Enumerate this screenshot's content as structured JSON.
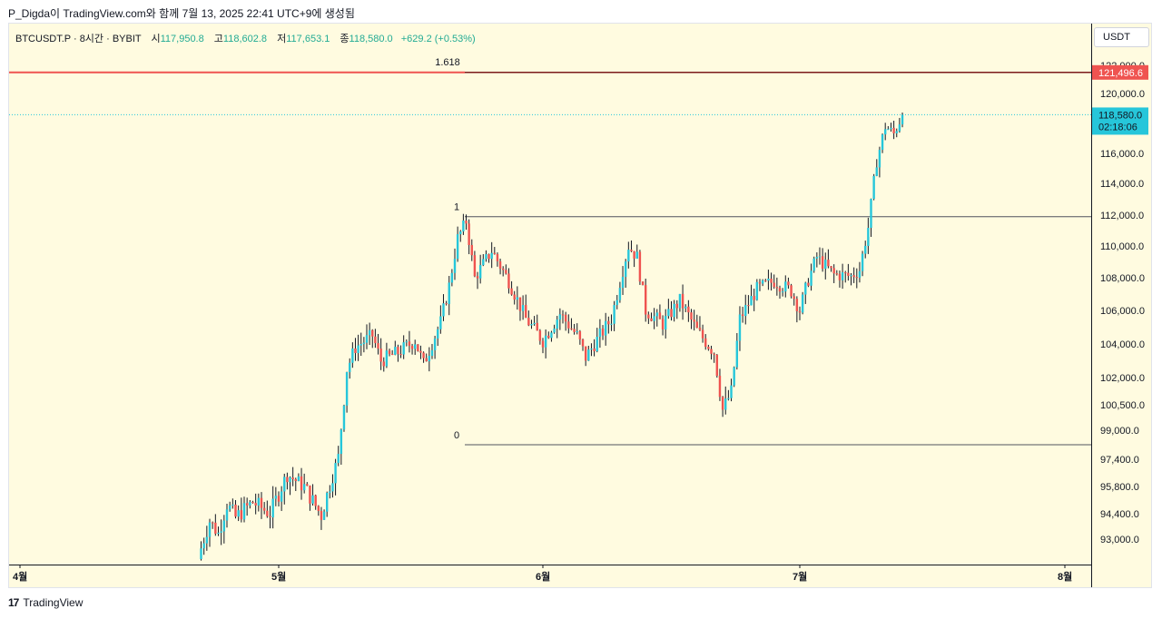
{
  "header": {
    "text": "P_Digda이 TradingView.com와 함께 7월 13, 2025 22:41 UTC+9에 생성됨"
  },
  "symbol": {
    "title": "BTCUSDT.P · 8시간 · BYBIT",
    "open_label": "시",
    "open": "117,950.8",
    "high_label": "고",
    "high": "118,602.8",
    "low_label": "저",
    "low": "117,653.1",
    "close_label": "종",
    "close": "118,580.0",
    "change": "+629.2 (+0.53%)"
  },
  "currency": "USDT",
  "footer": {
    "logo": "17",
    "brand": "TradingView"
  },
  "colors": {
    "up": "#26c6da",
    "down": "#ef5350",
    "background": "#fffbe0",
    "fib_line": "#7b1b1b",
    "last_price_tag": "#26c6da",
    "fib_tag": "#ef5350"
  },
  "chart_data": {
    "type": "candlestick",
    "timeframe": "8h",
    "y_axis_labels": [
      "122,000.0",
      "120,000.0",
      "116,000.0",
      "114,000.0",
      "112,000.0",
      "110,000.0",
      "108,000.0",
      "106,000.0",
      "104,000.0",
      "102,000.0",
      "100,500.0",
      "99,000.0",
      "97,400.0",
      "95,800.0",
      "94,400.0",
      "93,000.0"
    ],
    "x_axis_labels": [
      "4월",
      "5월",
      "6월",
      "7월",
      "8월"
    ],
    "fib_levels": [
      {
        "label": "1.618",
        "value": 121496.6,
        "tag": "121,496.6"
      },
      {
        "label": "1",
        "value": 111900
      },
      {
        "label": "0",
        "value": 98200
      }
    ],
    "last_price": {
      "value": 118580.0,
      "label": "118,580.0",
      "countdown": "02:18:06"
    },
    "path": [
      [
        "2025-04-22",
        92500
      ],
      [
        "2025-04-23",
        94000
      ],
      [
        "2025-04-24",
        93300
      ],
      [
        "2025-04-25",
        94900
      ],
      [
        "2025-04-26",
        94200
      ],
      [
        "2025-04-28",
        95000
      ],
      [
        "2025-04-30",
        94400
      ],
      [
        "2025-05-02",
        96500
      ],
      [
        "2025-05-04",
        95800
      ],
      [
        "2025-05-06",
        94300
      ],
      [
        "2025-05-08",
        97500
      ],
      [
        "2025-05-09",
        102500
      ],
      [
        "2025-05-10",
        103800
      ],
      [
        "2025-05-12",
        104500
      ],
      [
        "2025-05-13",
        103000
      ],
      [
        "2025-05-15",
        103500
      ],
      [
        "2025-05-17",
        104200
      ],
      [
        "2025-05-18",
        102800
      ],
      [
        "2025-05-20",
        105300
      ],
      [
        "2025-05-21",
        107500
      ],
      [
        "2025-05-22",
        110500
      ],
      [
        "2025-05-23",
        111600
      ],
      [
        "2025-05-24",
        108000
      ],
      [
        "2025-05-26",
        109700
      ],
      [
        "2025-05-28",
        107800
      ],
      [
        "2025-05-30",
        105500
      ],
      [
        "2025-06-01",
        104200
      ],
      [
        "2025-06-03",
        105800
      ],
      [
        "2025-06-05",
        104500
      ],
      [
        "2025-06-06",
        103200
      ],
      [
        "2025-06-07",
        104000
      ],
      [
        "2025-06-09",
        105500
      ],
      [
        "2025-06-11",
        110000
      ],
      [
        "2025-06-12",
        109300
      ],
      [
        "2025-06-13",
        106000
      ],
      [
        "2025-06-15",
        105200
      ],
      [
        "2025-06-17",
        106600
      ],
      [
        "2025-06-19",
        104800
      ],
      [
        "2025-06-21",
        103500
      ],
      [
        "2025-06-22",
        100200
      ],
      [
        "2025-06-23",
        101200
      ],
      [
        "2025-06-24",
        105500
      ],
      [
        "2025-06-26",
        107300
      ],
      [
        "2025-06-28",
        107800
      ],
      [
        "2025-06-30",
        107200
      ],
      [
        "2025-07-01",
        106000
      ],
      [
        "2025-07-02",
        107900
      ],
      [
        "2025-07-03",
        109300
      ],
      [
        "2025-07-05",
        108200
      ],
      [
        "2025-07-07",
        108100
      ],
      [
        "2025-07-08",
        108500
      ],
      [
        "2025-07-09",
        111200
      ],
      [
        "2025-07-10",
        115500
      ],
      [
        "2025-07-11",
        117800
      ],
      [
        "2025-07-12",
        117300
      ],
      [
        "2025-07-13",
        118580
      ]
    ]
  }
}
